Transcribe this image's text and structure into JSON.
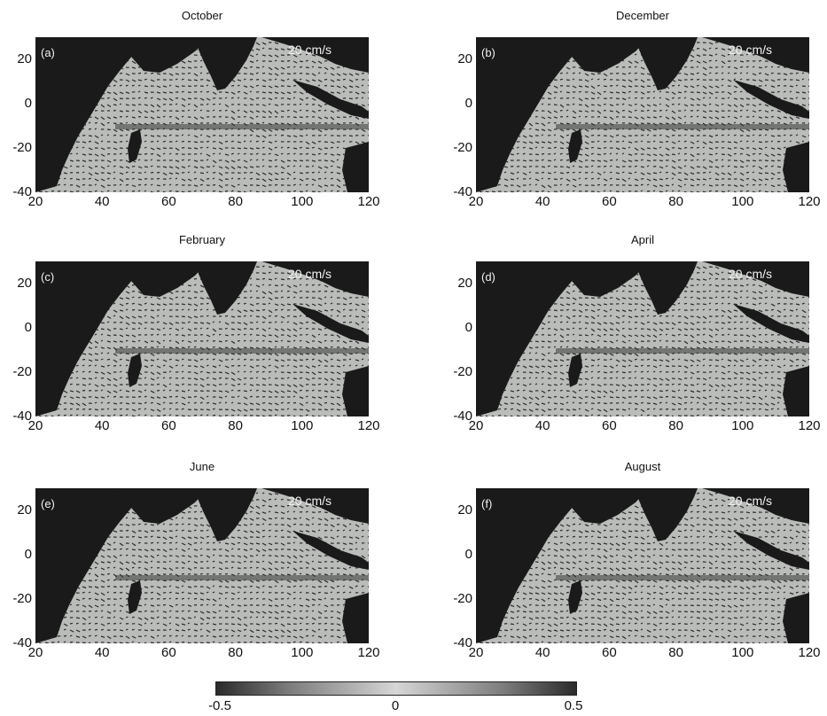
{
  "panels": [
    {
      "title": "October",
      "label": "(a)",
      "scale": "20 cm/s"
    },
    {
      "title": "December",
      "label": "(b)",
      "scale": "20 cm/s"
    },
    {
      "title": "February",
      "label": "(c)",
      "scale": "20 cm/s"
    },
    {
      "title": "April",
      "label": "(d)",
      "scale": "20 cm/s"
    },
    {
      "title": "June",
      "label": "(e)",
      "scale": "20 cm/s"
    },
    {
      "title": "August",
      "label": "(f)",
      "scale": "20 cm/s"
    }
  ],
  "axes": {
    "x_ticks": [
      "20",
      "40",
      "60",
      "80",
      "100",
      "120"
    ],
    "y_ticks": [
      "20",
      "0",
      "-20",
      "-40"
    ],
    "x_range": [
      20,
      120
    ],
    "y_range": [
      -40,
      30
    ]
  },
  "colorbar": {
    "ticks": [
      "-0.5",
      "0",
      "0.5"
    ],
    "range": [
      -0.5,
      0.5
    ]
  },
  "colors": {
    "land": "#1a1a1a",
    "ocean": "#b9bcb9",
    "arrows": "#2b2b2b"
  }
}
